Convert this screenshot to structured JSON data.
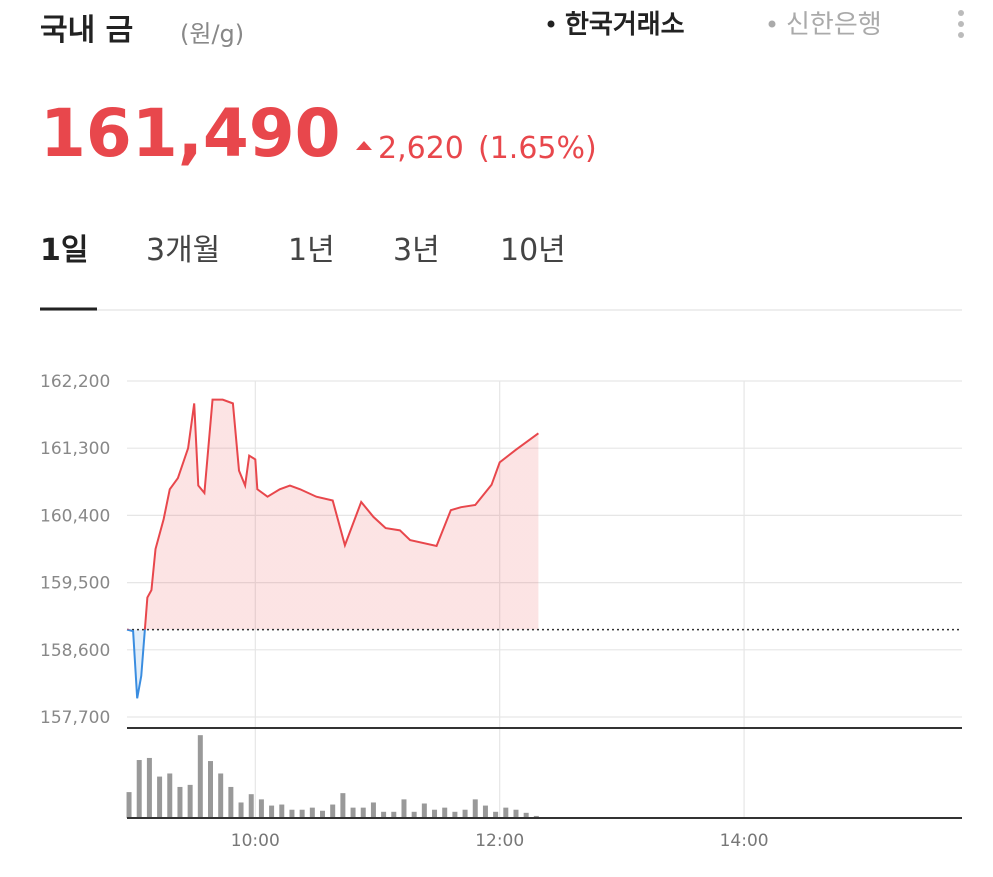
{
  "header": {
    "title": "국내 금",
    "unit": "(원/g)",
    "sources": [
      {
        "label": "한국거래소",
        "active": true
      },
      {
        "label": "신한은행",
        "active": false
      }
    ]
  },
  "quote": {
    "price": "161,490",
    "change": "2,620",
    "change_pct": "(1.65%)"
  },
  "tabs": [
    {
      "label": "1일",
      "active": true
    },
    {
      "label": "3개월",
      "active": false
    },
    {
      "label": "1년",
      "active": false
    },
    {
      "label": "3년",
      "active": false
    },
    {
      "label": "10년",
      "active": false
    }
  ],
  "chart_data": {
    "type": "line",
    "x": [
      537,
      540,
      542,
      544,
      547,
      549,
      551,
      555,
      558,
      562,
      567,
      570,
      572,
      575,
      579,
      584,
      589,
      592,
      595,
      597,
      600,
      601,
      606,
      612,
      617,
      622,
      630,
      638,
      644,
      652,
      658,
      664,
      671,
      676,
      689,
      696,
      701,
      708,
      716,
      720,
      728,
      739
    ],
    "series": [
      {
        "color": "#e8474c",
        "below_color": "#3a8de0",
        "values": [
          158870,
          158850,
          157950,
          158250,
          159300,
          159400,
          159950,
          160350,
          160750,
          160900,
          161300,
          161900,
          160800,
          160700,
          161950,
          161950,
          161900,
          161000,
          160800,
          161200,
          161150,
          160750,
          160650,
          160750,
          160800,
          160750,
          160650,
          160600,
          160000,
          160580,
          160380,
          160230,
          160200,
          160070,
          159990,
          160470,
          160510,
          160540,
          160810,
          161110,
          161280,
          161500
        ]
      }
    ],
    "baseline": 158870,
    "xlim": [
      537,
      947
    ],
    "xticks": [
      {
        "value": 600,
        "label": "10:00"
      },
      {
        "value": 720,
        "label": "12:00"
      },
      {
        "value": 840,
        "label": "14:00"
      }
    ],
    "ylim": [
      157700,
      162200
    ],
    "yticks": [
      {
        "value": 162200,
        "label": "162,200"
      },
      {
        "value": 161300,
        "label": "161,300"
      },
      {
        "value": 160400,
        "label": "160,400"
      },
      {
        "value": 159500,
        "label": "159,500"
      },
      {
        "value": 158600,
        "label": "158,600"
      },
      {
        "value": 157700,
        "label": "157,700"
      }
    ],
    "grid": true,
    "volume": {
      "color": "#999999",
      "ylim": [
        0,
        85
      ],
      "x": [
        538,
        543,
        548,
        553,
        558,
        563,
        568,
        573,
        578,
        583,
        588,
        593,
        598,
        603,
        608,
        613,
        618,
        623,
        628,
        633,
        638,
        643,
        648,
        653,
        658,
        663,
        668,
        673,
        678,
        683,
        688,
        693,
        698,
        703,
        708,
        713,
        718,
        723,
        728,
        733,
        738
      ],
      "values": [
        25,
        56,
        58,
        40,
        43,
        30,
        32,
        80,
        55,
        43,
        30,
        15,
        23,
        18,
        12,
        13,
        8,
        8,
        10,
        7,
        13,
        24,
        10,
        10,
        15,
        6,
        6,
        18,
        6,
        14,
        8,
        10,
        6,
        8,
        18,
        12,
        6,
        10,
        8,
        5,
        2
      ]
    }
  }
}
